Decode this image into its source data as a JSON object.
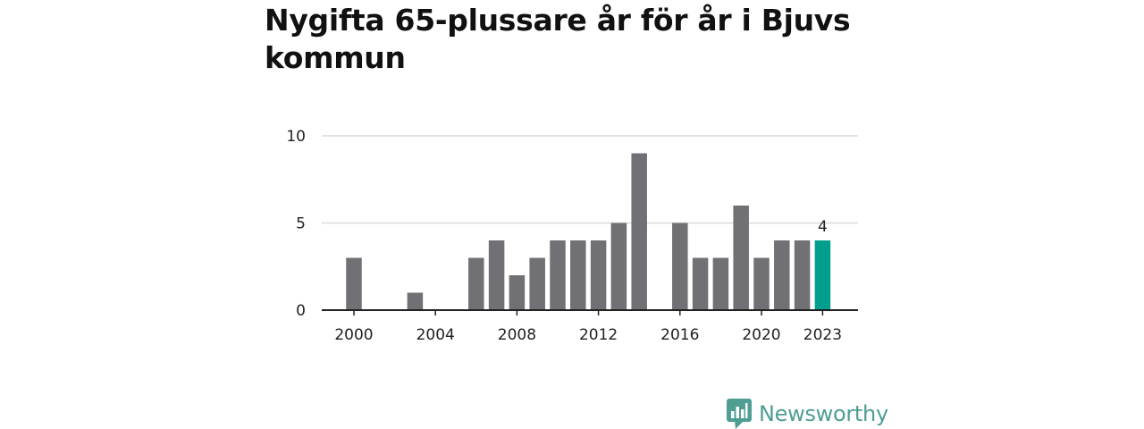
{
  "title": "Nygifta 65-plussare år för år i Bjuvs kommun",
  "brand": {
    "name": "Newsworthy"
  },
  "colors": {
    "bar": "#707075",
    "highlight": "#009e8c",
    "grid": "#d9d9d9",
    "axis": "#222222",
    "brand": "#4e9e94"
  },
  "chart_data": {
    "type": "bar",
    "title": "Nygifta 65-plussare år för år i Bjuvs kommun",
    "xlabel": "",
    "ylabel": "",
    "categories": [
      2000,
      2001,
      2002,
      2003,
      2004,
      2005,
      2006,
      2007,
      2008,
      2009,
      2010,
      2011,
      2012,
      2013,
      2014,
      2015,
      2016,
      2017,
      2018,
      2019,
      2020,
      2021,
      2022,
      2023
    ],
    "values": [
      3,
      0,
      0,
      1,
      0,
      0,
      3,
      4,
      2,
      3,
      4,
      4,
      4,
      5,
      9,
      0,
      5,
      3,
      3,
      6,
      3,
      4,
      4,
      4
    ],
    "ylim": [
      0,
      10
    ],
    "yticks": [
      "0",
      "5",
      "10"
    ],
    "xticks": [
      "2000",
      "2004",
      "2008",
      "2012",
      "2016",
      "2020",
      "2023"
    ],
    "highlight_category": 2023,
    "data_labels": [
      {
        "category": 2023,
        "text": "4"
      }
    ],
    "grid": true
  }
}
